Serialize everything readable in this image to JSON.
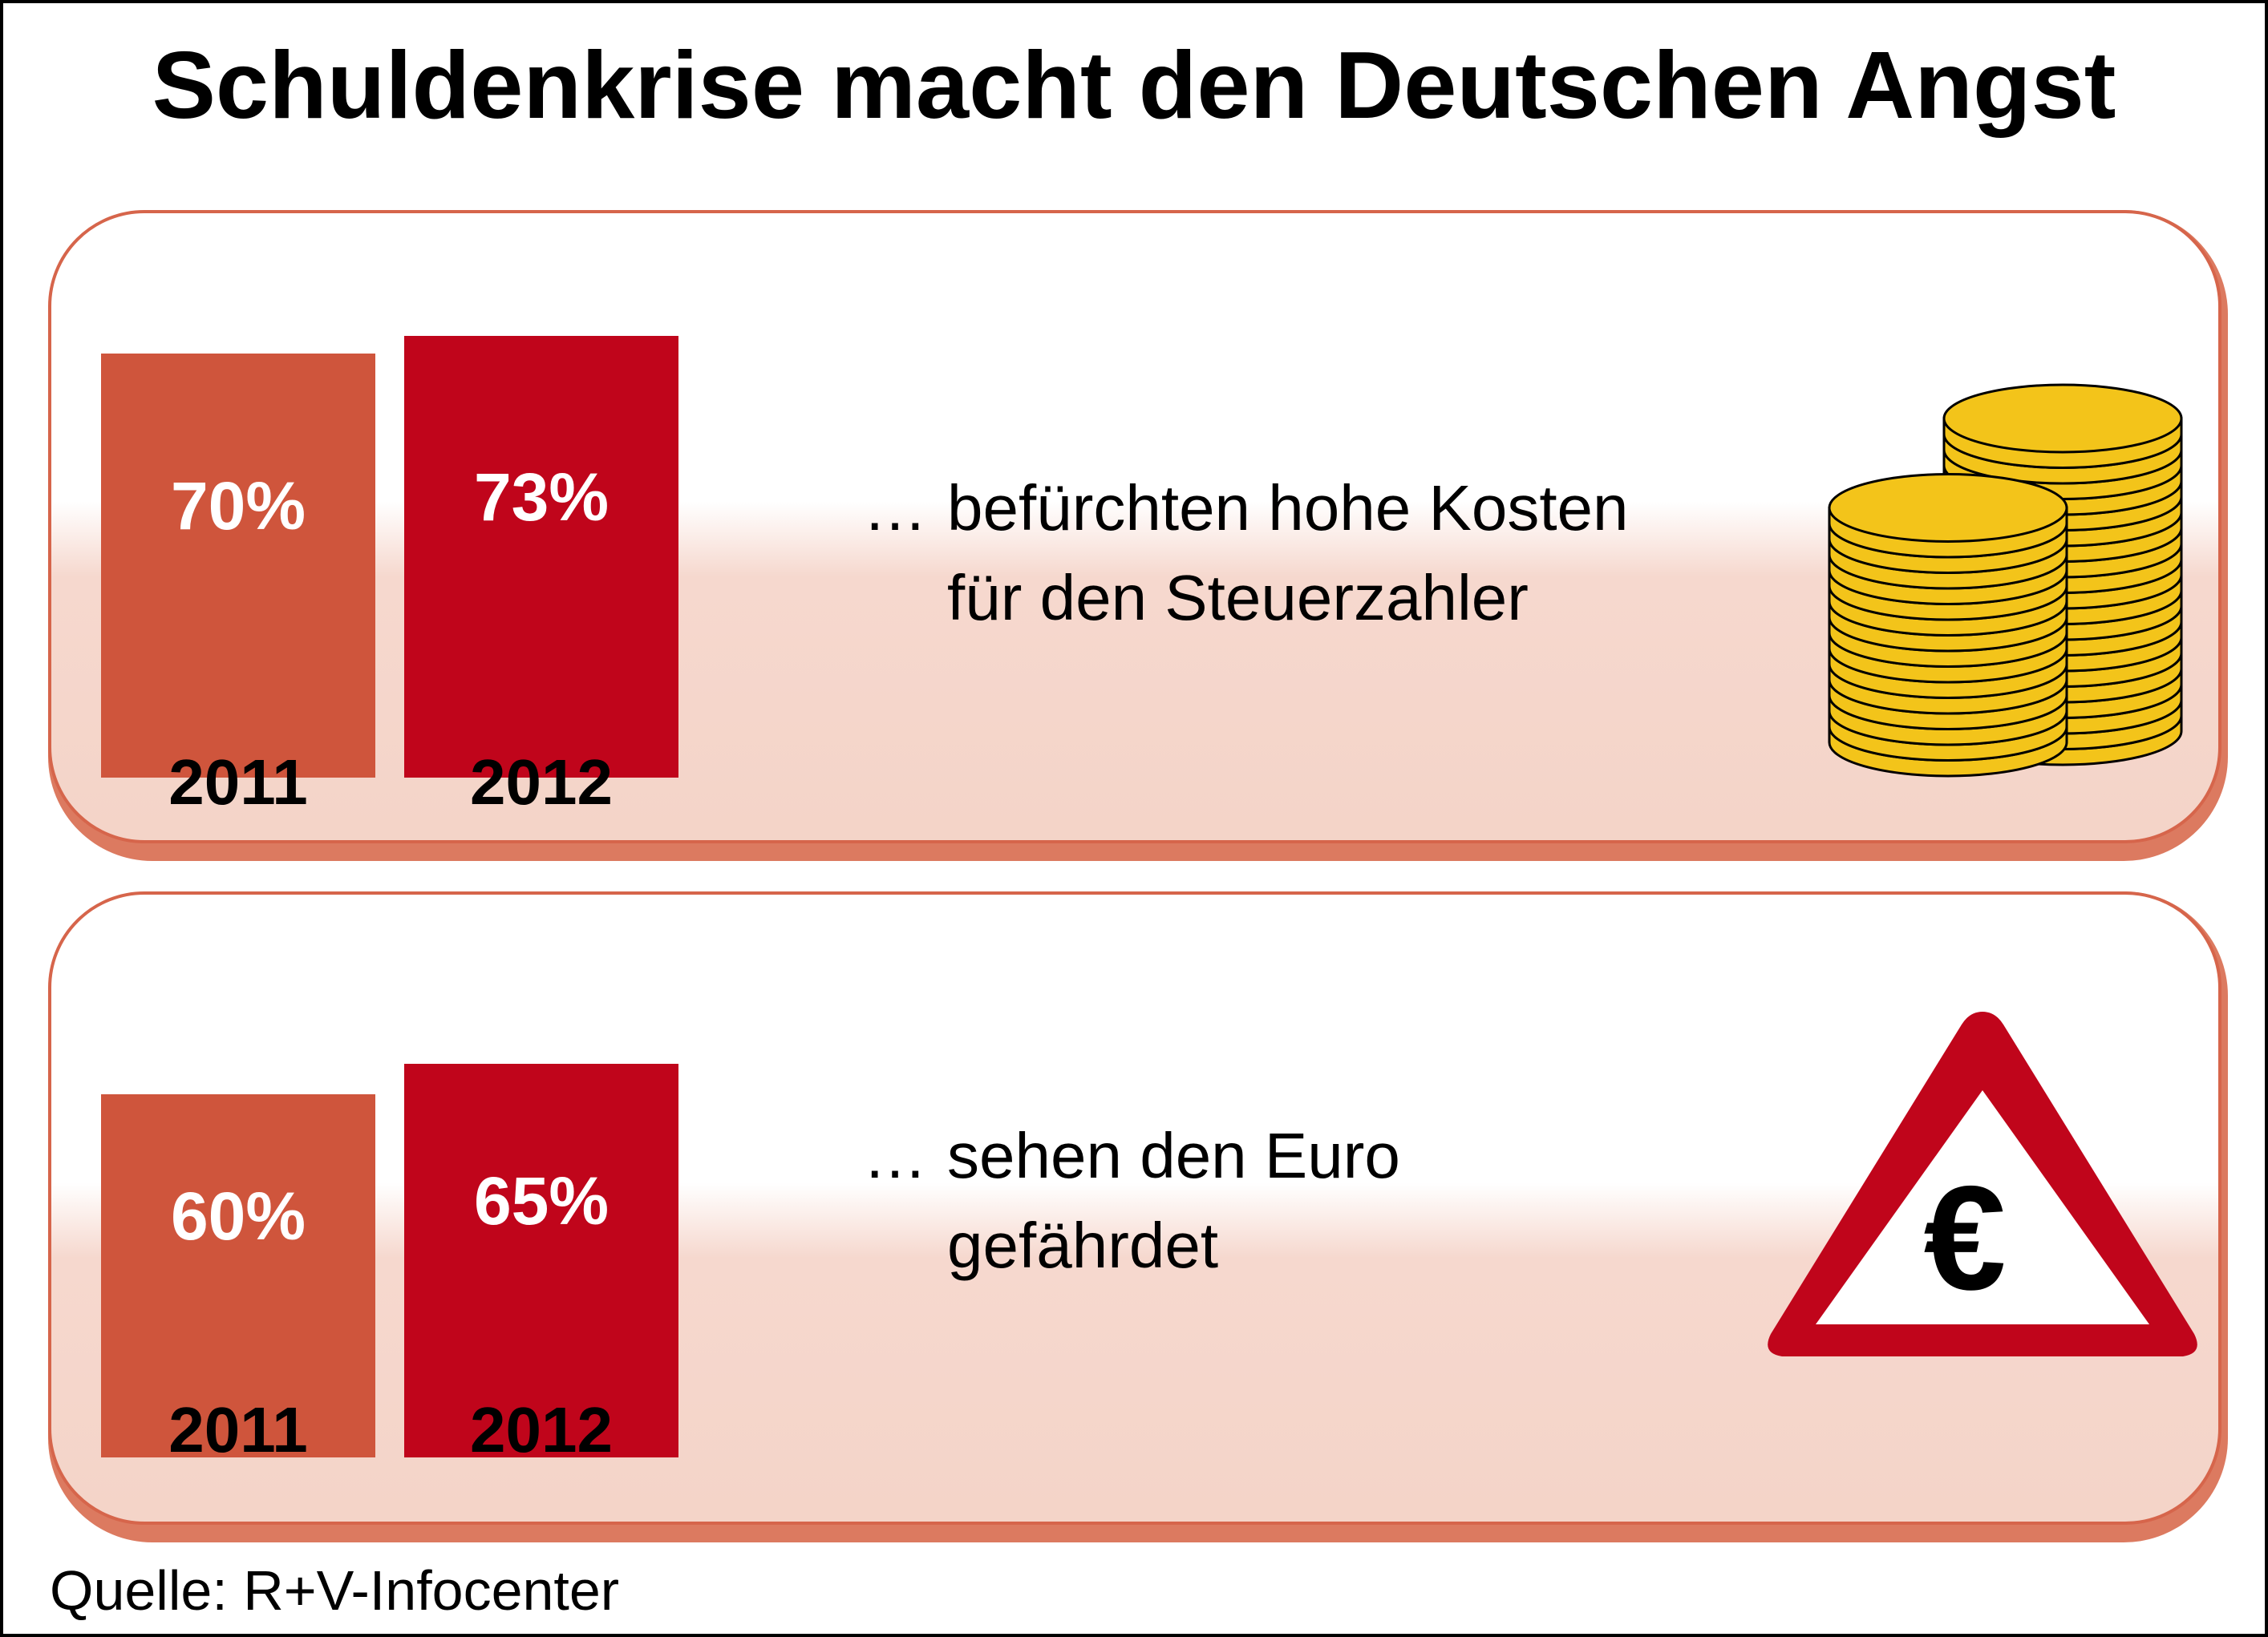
{
  "title": "Schuldenkrise macht den Deutschen Angst",
  "source": "Quelle: R+V-Infocenter",
  "colors": {
    "bar_2011": "#cf553c",
    "bar_2012": "#c0051b",
    "panel_border": "#d6654b",
    "coin_fill": "#f3c41a",
    "warning_red": "#c0051b"
  },
  "icons": {
    "panel1": "coin-stack-icon",
    "panel2": "euro-warning-triangle-icon"
  },
  "chart_data": [
    {
      "type": "bar",
      "categories": [
        "2011",
        "2012"
      ],
      "values": [
        70,
        73
      ],
      "value_labels": [
        "70%",
        "73%"
      ],
      "unit": "%",
      "description": [
        "…",
        "befürchten hohe Kosten",
        "für den Steuerzahler"
      ]
    },
    {
      "type": "bar",
      "categories": [
        "2011",
        "2012"
      ],
      "values": [
        60,
        65
      ],
      "value_labels": [
        "60%",
        "65%"
      ],
      "unit": "%",
      "description": [
        "…",
        "sehen den Euro",
        "gefährdet"
      ]
    }
  ],
  "warning_sign": {
    "symbol": "€"
  }
}
